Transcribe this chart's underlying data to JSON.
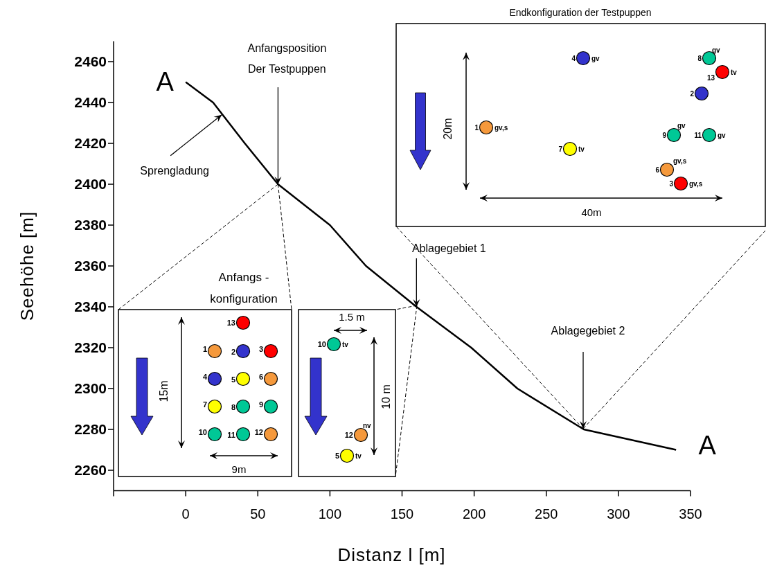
{
  "chart_data": {
    "type": "line",
    "xlabel": "Distanz l [m]",
    "ylabel": "Seehöhe [m]",
    "x": [
      0,
      19,
      41,
      64,
      100,
      125,
      160,
      198,
      230,
      276,
      340
    ],
    "series": [
      {
        "color": "#000000",
        "values": [
          2450,
          2440,
          2420,
          2400,
          2380,
          2360,
          2340,
          2320,
          2300,
          2280,
          2270
        ]
      }
    ],
    "xlim": [
      -50,
      350
    ],
    "xticks": [
      {
        "value": -50,
        "label": null
      },
      0,
      50,
      100,
      150,
      200,
      250,
      300,
      350
    ],
    "ylim": [
      2250,
      2470
    ],
    "yticks": [
      2260,
      2280,
      2300,
      2320,
      2340,
      2360,
      2380,
      2400,
      2420,
      2440,
      2460
    ],
    "grid": false,
    "legend": false,
    "marker": "none",
    "line_style": "solid",
    "annotations": [
      {
        "text": "A",
        "x": 0,
        "y": 2450
      },
      {
        "text": "A",
        "x": 340,
        "y": 2270
      },
      {
        "text": "Sprengladung",
        "x": 25,
        "y": 2434
      },
      {
        "text": "Anfangsposition\nDer Testpuppen",
        "x": 64,
        "y": 2400
      },
      {
        "text": "Ablagegebiet 1",
        "x": 160,
        "y": 2340
      },
      "Ablagegebiet 2",
      {
        "text": "Anfangs -\nkonfiguration",
        "x": 64,
        "y": 2400
      },
      "15m",
      "9m",
      "1.5 m",
      "10 m",
      "Endkonfiguration der Testpuppen",
      "20m",
      "40m",
      "13",
      "1",
      "2",
      "3",
      "4",
      "5",
      "6",
      "7",
      "8",
      "9",
      "10",
      "11",
      "12",
      "10",
      "tv",
      "12",
      "nv",
      "5",
      "tv",
      "4",
      "gv",
      "8",
      "gv",
      "13",
      "tv",
      "2",
      "1",
      "gv,s",
      "9",
      "gv",
      "11",
      "gv",
      "7",
      "tv",
      "6",
      "gv,s",
      "3",
      "gv,s"
    ]
  }
}
